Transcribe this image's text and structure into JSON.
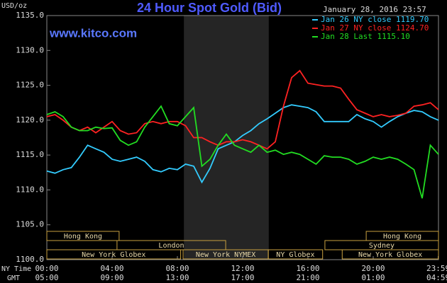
{
  "chart_data": {
    "type": "line",
    "title": "24 Hour Spot Gold (Bid)",
    "subtitle": "January 28, 2016 23:57",
    "source": "www.kitco.com",
    "y_label": "USD/oz",
    "x_label": "NY Time",
    "x2_label": "GMT",
    "x": [
      0,
      0.5,
      1,
      1.5,
      2,
      2.5,
      3,
      3.5,
      4,
      4.5,
      5,
      5.5,
      6,
      6.5,
      7,
      7.5,
      8,
      8.5,
      9,
      9.5,
      10,
      10.5,
      11,
      11.5,
      12,
      12.5,
      13,
      13.5,
      14,
      14.5,
      15,
      15.5,
      16,
      16.5,
      17,
      17.5,
      18,
      18.5,
      19,
      19.5,
      20,
      20.5,
      21,
      21.5,
      22,
      22.5,
      23,
      23.5,
      24
    ],
    "xlim": [
      0,
      24
    ],
    "xticks": [
      {
        "value": 0,
        "label": "00:00"
      },
      {
        "value": 4,
        "label": "04:00"
      },
      {
        "value": 8,
        "label": "08:00"
      },
      {
        "value": 12,
        "label": "12:00"
      },
      {
        "value": 16,
        "label": "16:00"
      },
      {
        "value": 20,
        "label": "20:00"
      },
      {
        "value": 23.98,
        "label": "23:59"
      }
    ],
    "x2ticks": [
      {
        "value": 0,
        "label": "05:00"
      },
      {
        "value": 4,
        "label": "09:00"
      },
      {
        "value": 8,
        "label": "13:00"
      },
      {
        "value": 12,
        "label": "17:00"
      },
      {
        "value": 16,
        "label": "21:00"
      },
      {
        "value": 20,
        "label": "01:00"
      },
      {
        "value": 23.98,
        "label": "04:59"
      }
    ],
    "ylim": [
      1100,
      1135
    ],
    "yticks": [
      {
        "value": 1100,
        "label": "1100.0"
      },
      {
        "value": 1105,
        "label": "1105.0"
      },
      {
        "value": 1110,
        "label": "1110.0"
      },
      {
        "value": 1115,
        "label": "1115.0"
      },
      {
        "value": 1120,
        "label": "1120.0"
      },
      {
        "value": 1125,
        "label": "1125.0"
      },
      {
        "value": 1130,
        "label": "1130.0"
      },
      {
        "value": 1135,
        "label": "1135.0"
      }
    ],
    "highlight": [
      8.4,
      13.6
    ],
    "sessions": [
      [
        {
          "label": "Hong Kong",
          "start": 0,
          "end": 4.43
        },
        {
          "label": "Hong Kong",
          "start": 19.57,
          "end": 24
        }
      ],
      [
        {
          "label": "London",
          "start": 4.3,
          "end": 10.96
        },
        {
          "label": "Sydney",
          "start": 17.04,
          "end": 24
        }
      ],
      [
        {
          "label": "New York Globex",
          "start": 0,
          "end": 8.2
        },
        {
          "label": "New York NYMEX",
          "start": 8.35,
          "end": 13.57
        },
        {
          "label": "NY Globex",
          "start": 13.57,
          "end": 16.9
        },
        {
          "label": "New York Globex",
          "start": 18.1,
          "end": 24
        }
      ]
    ],
    "series": [
      {
        "name": "Jan 26 NY close 1119.70",
        "color": "#33ccff",
        "values": [
          1112.7,
          1112.4,
          1112.9,
          1113.2,
          1114.7,
          1116.4,
          1115.9,
          1115.4,
          1114.4,
          1114.1,
          1114.4,
          1114.7,
          1114.1,
          1112.9,
          1112.6,
          1113.1,
          1112.9,
          1113.7,
          1113.4,
          1111.1,
          1113.1,
          1115.9,
          1116.4,
          1116.9,
          1117.8,
          1118.5,
          1119.5,
          1120.2,
          1121.0,
          1121.8,
          1122.2,
          1122.0,
          1121.8,
          1121.2,
          1119.8,
          1119.8,
          1119.8,
          1119.8,
          1120.8,
          1120.2,
          1119.8,
          1119.0,
          1119.8,
          1120.5,
          1121.0,
          1121.4,
          1121.2,
          1120.5,
          1120.0
        ]
      },
      {
        "name": "Jan 27 NY close 1124.70",
        "color": "#ff2222",
        "values": [
          1120.5,
          1120.8,
          1120.0,
          1119.0,
          1118.5,
          1119.0,
          1118.2,
          1119.0,
          1119.8,
          1118.5,
          1118.0,
          1118.2,
          1119.5,
          1119.8,
          1119.5,
          1119.8,
          1119.8,
          1119.2,
          1117.5,
          1117.5,
          1116.9,
          1116.4,
          1116.9,
          1116.9,
          1117.2,
          1116.9,
          1116.4,
          1115.9,
          1116.9,
          1122.0,
          1126.1,
          1127.1,
          1125.3,
          1125.1,
          1124.9,
          1124.9,
          1124.6,
          1123.0,
          1121.5,
          1121.0,
          1120.5,
          1120.8,
          1120.5,
          1120.7,
          1121.0,
          1122.0,
          1122.2,
          1122.5,
          1121.5
        ]
      },
      {
        "name": "Jan 28 Last 1115.10",
        "color": "#22dd22",
        "values": [
          1120.8,
          1121.2,
          1120.5,
          1119.0,
          1118.5,
          1118.5,
          1119.0,
          1118.8,
          1118.9,
          1117.1,
          1116.4,
          1116.9,
          1119.0,
          1120.5,
          1122.0,
          1119.5,
          1119.2,
          1120.5,
          1121.8,
          1113.4,
          1114.4,
          1116.4,
          1118.0,
          1116.4,
          1115.9,
          1115.4,
          1116.4,
          1115.4,
          1115.7,
          1115.1,
          1115.4,
          1115.1,
          1114.4,
          1113.7,
          1114.9,
          1114.7,
          1114.7,
          1114.4,
          1113.7,
          1114.1,
          1114.7,
          1114.4,
          1114.7,
          1114.4,
          1113.7,
          1112.9,
          1108.8,
          1116.4,
          1115.1
        ]
      }
    ]
  }
}
